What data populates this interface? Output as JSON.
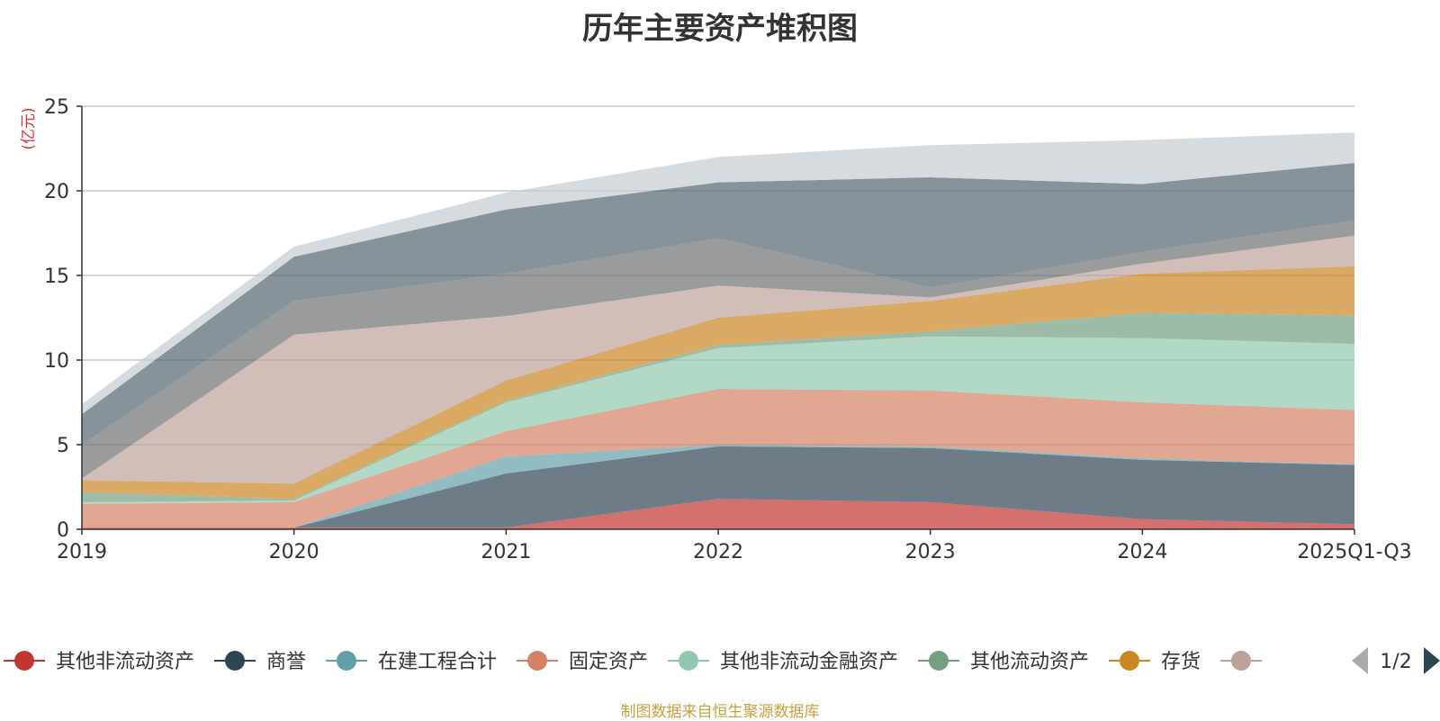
{
  "chart_data": {
    "type": "area",
    "stacked": true,
    "title": "历年主要资产堆积图",
    "ylabel": "(亿元)",
    "xlabel": "",
    "ylim": [
      0,
      25
    ],
    "yticks": [
      0,
      5,
      10,
      15,
      20,
      25
    ],
    "grid": true,
    "categories": [
      "2019",
      "2020",
      "2021",
      "2022",
      "2023",
      "2024",
      "2025Q1-Q3"
    ],
    "series": [
      {
        "name": "其他非流动资产",
        "color": "#c23531",
        "values": [
          0.1,
          0.1,
          0.1,
          1.8,
          1.6,
          0.6,
          0.3
        ]
      },
      {
        "name": "商誉",
        "color": "#2f4554",
        "values": [
          0,
          0,
          3.2,
          3.1,
          3.2,
          3.5,
          3.5
        ]
      },
      {
        "name": "在建工程合计",
        "color": "#61a0a8",
        "values": [
          0,
          0,
          1.0,
          0.1,
          0.1,
          0.1,
          0.05
        ]
      },
      {
        "name": "固定资产",
        "color": "#d48265",
        "values": [
          1.4,
          1.5,
          1.5,
          3.3,
          3.3,
          3.3,
          3.2
        ]
      },
      {
        "name": "其他非流动金融资产",
        "color": "#91c7ae",
        "values": [
          0.1,
          0.1,
          1.7,
          2.4,
          3.2,
          3.8,
          3.9
        ]
      },
      {
        "name": "其他流动资产",
        "color": "#749f83",
        "values": [
          0.6,
          0.1,
          0.1,
          0.2,
          0.3,
          1.5,
          1.7
        ]
      },
      {
        "name": "存货",
        "color": "#ca8622",
        "values": [
          0.7,
          0.9,
          1.2,
          1.6,
          1.8,
          2.3,
          2.9
        ]
      },
      {
        "name": "",
        "color": "#bda29a",
        "values": [
          0.1,
          8.8,
          3.8,
          1.9,
          0.2,
          0.6,
          1.8
        ]
      },
      {
        "name": "",
        "color": "#6e7074",
        "values": [
          2.0,
          2.0,
          2.5,
          2.8,
          0.6,
          0.7,
          0.9
        ]
      },
      {
        "name": "",
        "color": "#546570",
        "values": [
          1.8,
          2.6,
          3.8,
          3.3,
          6.5,
          4.0,
          3.4
        ]
      },
      {
        "name": "",
        "color": "#c4ccd3",
        "values": [
          0.6,
          0.6,
          1.0,
          1.5,
          1.9,
          2.6,
          1.8
        ]
      }
    ],
    "legend": {
      "position": "bottom",
      "page": "1/2"
    },
    "source": "制图数据来自恒生聚源数据库"
  }
}
